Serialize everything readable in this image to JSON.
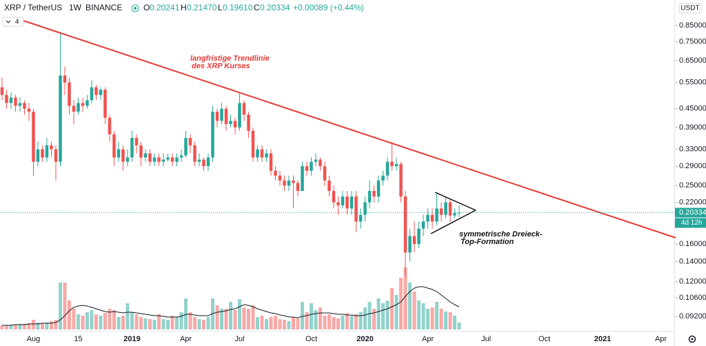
{
  "header": {
    "symbol": "XRP / TetherUS",
    "interval": "1W",
    "exchange": "BINANCE",
    "ohlc": [
      {
        "key": "O",
        "value": "0.20241"
      },
      {
        "key": "H",
        "value": "0.21470"
      },
      {
        "key": "L",
        "value": "0.19610"
      },
      {
        "key": "C",
        "value": "0.20334"
      }
    ],
    "change": "+0.00089 (+0.44%)",
    "indicator": "4"
  },
  "chart_data": {
    "type": "candlestick",
    "y_axis_unit": "USDT",
    "log_scale": true,
    "up_color": "#26a69a",
    "down_color": "#ef5350",
    "ylim": [
      0.0824,
      1.033
    ],
    "yticks": [
      {
        "value": 0.85,
        "label": "0.85000"
      },
      {
        "value": 0.75,
        "label": "0.75000"
      },
      {
        "value": 0.65,
        "label": "0.65000"
      },
      {
        "value": 0.55,
        "label": "0.55000"
      },
      {
        "value": 0.45,
        "label": "0.45000"
      },
      {
        "value": 0.39,
        "label": "0.39000"
      },
      {
        "value": 0.33,
        "label": "0.33000"
      },
      {
        "value": 0.29,
        "label": "0.29000"
      },
      {
        "value": 0.25,
        "label": "0.25000"
      },
      {
        "value": 0.22,
        "label": "0.22000"
      },
      {
        "value": 0.16,
        "label": "0.16000"
      },
      {
        "value": 0.14,
        "label": "0.14000"
      },
      {
        "value": 0.12,
        "label": "0.12000"
      },
      {
        "value": 0.106,
        "label": "0.10600"
      },
      {
        "value": 0.092,
        "label": "0.09200"
      }
    ],
    "price_tag": "0.20334",
    "countdown": "4d 12h",
    "annotations": [
      {
        "lines": [
          "langfristige Trendlinie",
          "des XRP Kurses"
        ],
        "color": "#e53935"
      },
      {
        "lines": [
          "symmetrische Dreieck-",
          "Top-Formation"
        ],
        "color": "#111111"
      }
    ],
    "categories": [
      null,
      null,
      null,
      null,
      null,
      null,
      null,
      "Aug",
      null,
      null,
      null,
      null,
      null,
      null,
      null,
      null,
      null,
      "15",
      null,
      null,
      null,
      null,
      null,
      null,
      null,
      null,
      null,
      null,
      null,
      "2019",
      null,
      null,
      null,
      null,
      null,
      null,
      null,
      null,
      null,
      null,
      null,
      "Apr",
      null,
      null,
      null,
      null,
      null,
      null,
      null,
      null,
      null,
      null,
      null,
      "Jul",
      null,
      null,
      null,
      null,
      null,
      null,
      null,
      null,
      null,
      null,
      null,
      null,
      null,
      null,
      null,
      "Oct",
      null,
      null,
      null,
      null,
      null,
      null,
      null,
      null,
      null,
      null,
      null,
      "2020",
      null,
      null,
      null,
      null,
      null,
      null,
      null,
      null,
      null,
      null,
      null,
      null,
      null,
      "Apr",
      null,
      null,
      null,
      null,
      null,
      null,
      null,
      null,
      null,
      null,
      null,
      null,
      "Jul",
      null,
      null,
      null,
      null,
      null,
      null,
      null,
      null,
      null,
      null,
      null,
      null,
      "Oct",
      null,
      null,
      null,
      null,
      null,
      null,
      null,
      null,
      null,
      null,
      null,
      null,
      "2021",
      null,
      null,
      null,
      null,
      null,
      null,
      null,
      null,
      null,
      null,
      null,
      null,
      "Apr",
      null,
      null
    ],
    "open": [
      0.53,
      0.5,
      0.47,
      0.49,
      0.46,
      0.47,
      0.45,
      0.44,
      0.3,
      0.33,
      0.31,
      0.34,
      0.33,
      0.3,
      0.58,
      0.55,
      0.46,
      0.44,
      0.47,
      0.46,
      0.48,
      0.53,
      0.5,
      0.52,
      0.42,
      0.37,
      0.31,
      0.33,
      0.3,
      0.31,
      0.36,
      0.34,
      0.31,
      0.32,
      0.3,
      0.31,
      0.3,
      0.305,
      0.31,
      0.3,
      0.31,
      0.315,
      0.36,
      0.34,
      0.3,
      0.305,
      0.29,
      0.31,
      0.44,
      0.41,
      0.45,
      0.4,
      0.41,
      0.39,
      0.47,
      0.43,
      0.38,
      0.31,
      0.33,
      0.31,
      0.32,
      0.28,
      0.27,
      0.26,
      0.25,
      0.26,
      0.255,
      0.24,
      0.29,
      0.28,
      0.3,
      0.305,
      0.29,
      0.26,
      0.24,
      0.22,
      0.215,
      0.23,
      0.21,
      0.23,
      0.19,
      0.2,
      0.22,
      0.24,
      0.23,
      0.26,
      0.27,
      0.3,
      0.29,
      0.295,
      0.23,
      0.15,
      0.17,
      0.16,
      0.18,
      0.19,
      0.2,
      0.19,
      0.21,
      0.2,
      0.22,
      0.199,
      0.20241,
      null,
      null,
      null,
      null,
      null,
      null,
      null,
      null,
      null,
      null,
      null,
      null,
      null,
      null,
      null,
      null,
      null,
      null,
      null,
      null,
      null,
      null,
      null,
      null,
      null,
      null,
      null,
      null,
      null,
      null,
      null,
      null,
      null,
      null,
      null,
      null,
      null,
      null,
      null,
      null,
      null,
      null,
      null,
      null,
      null,
      null,
      null
    ],
    "high": [
      0.57,
      0.52,
      0.51,
      0.5,
      0.49,
      0.48,
      0.47,
      0.45,
      0.35,
      0.34,
      0.36,
      0.35,
      0.34,
      0.81,
      0.62,
      0.57,
      0.48,
      0.49,
      0.49,
      0.5,
      0.56,
      0.54,
      0.53,
      0.53,
      0.43,
      0.38,
      0.35,
      0.34,
      0.33,
      0.38,
      0.37,
      0.35,
      0.33,
      0.33,
      0.32,
      0.32,
      0.32,
      0.32,
      0.32,
      0.32,
      0.33,
      0.38,
      0.37,
      0.35,
      0.32,
      0.31,
      0.32,
      0.46,
      0.45,
      0.47,
      0.46,
      0.43,
      0.42,
      0.51,
      0.48,
      0.44,
      0.39,
      0.34,
      0.34,
      0.33,
      0.33,
      0.29,
      0.28,
      0.27,
      0.27,
      0.27,
      0.26,
      0.3,
      0.3,
      0.31,
      0.32,
      0.31,
      0.3,
      0.27,
      0.25,
      0.23,
      0.24,
      0.24,
      0.24,
      0.24,
      0.21,
      0.23,
      0.26,
      0.25,
      0.27,
      0.28,
      0.31,
      0.35,
      0.31,
      0.3,
      0.24,
      0.18,
      0.19,
      0.19,
      0.2,
      0.21,
      0.21,
      0.235,
      0.22,
      0.23,
      0.225,
      0.21,
      0.2147,
      null,
      null,
      null,
      null,
      null,
      null,
      null,
      null,
      null,
      null,
      null,
      null,
      null,
      null,
      null,
      null,
      null,
      null,
      null,
      null,
      null,
      null,
      null,
      null,
      null,
      null,
      null,
      null,
      null,
      null,
      null,
      null,
      null,
      null,
      null,
      null,
      null,
      null,
      null,
      null,
      null,
      null,
      null,
      null,
      null,
      null,
      null
    ],
    "low": [
      0.48,
      0.45,
      0.45,
      0.44,
      0.44,
      0.43,
      0.41,
      0.27,
      0.29,
      0.3,
      0.3,
      0.31,
      0.26,
      0.29,
      0.5,
      0.43,
      0.4,
      0.43,
      0.44,
      0.45,
      0.47,
      0.48,
      0.48,
      0.4,
      0.35,
      0.29,
      0.3,
      0.28,
      0.29,
      0.3,
      0.32,
      0.29,
      0.3,
      0.29,
      0.29,
      0.29,
      0.29,
      0.3,
      0.29,
      0.29,
      0.3,
      0.31,
      0.32,
      0.29,
      0.29,
      0.28,
      0.28,
      0.3,
      0.39,
      0.4,
      0.38,
      0.39,
      0.37,
      0.38,
      0.41,
      0.36,
      0.3,
      0.3,
      0.3,
      0.3,
      0.27,
      0.26,
      0.25,
      0.24,
      0.24,
      0.21,
      0.23,
      0.24,
      0.27,
      0.27,
      0.29,
      0.28,
      0.25,
      0.23,
      0.21,
      0.2,
      0.21,
      0.2,
      0.2,
      0.175,
      0.18,
      0.19,
      0.21,
      0.22,
      0.22,
      0.25,
      0.26,
      0.28,
      0.28,
      0.22,
      0.125,
      0.14,
      0.15,
      0.155,
      0.17,
      0.18,
      0.18,
      0.185,
      0.19,
      0.195,
      0.19,
      0.195,
      0.1961,
      null,
      null,
      null,
      null,
      null,
      null,
      null,
      null,
      null,
      null,
      null,
      null,
      null,
      null,
      null,
      null,
      null,
      null,
      null,
      null,
      null,
      null,
      null,
      null,
      null,
      null,
      null,
      null,
      null,
      null,
      null,
      null,
      null,
      null,
      null,
      null,
      null,
      null,
      null,
      null,
      null,
      null,
      null,
      null,
      null,
      null,
      null
    ],
    "close": [
      0.5,
      0.47,
      0.49,
      0.46,
      0.47,
      0.45,
      0.44,
      0.3,
      0.33,
      0.31,
      0.34,
      0.33,
      0.3,
      0.58,
      0.55,
      0.46,
      0.44,
      0.47,
      0.46,
      0.48,
      0.53,
      0.5,
      0.52,
      0.42,
      0.37,
      0.31,
      0.33,
      0.3,
      0.31,
      0.36,
      0.34,
      0.31,
      0.32,
      0.3,
      0.31,
      0.3,
      0.305,
      0.31,
      0.3,
      0.31,
      0.315,
      0.36,
      0.34,
      0.3,
      0.305,
      0.29,
      0.31,
      0.44,
      0.41,
      0.45,
      0.4,
      0.41,
      0.39,
      0.47,
      0.43,
      0.38,
      0.31,
      0.33,
      0.31,
      0.32,
      0.28,
      0.27,
      0.26,
      0.25,
      0.26,
      0.255,
      0.24,
      0.29,
      0.28,
      0.3,
      0.305,
      0.29,
      0.26,
      0.24,
      0.22,
      0.215,
      0.23,
      0.21,
      0.23,
      0.19,
      0.2,
      0.22,
      0.24,
      0.23,
      0.26,
      0.27,
      0.3,
      0.29,
      0.295,
      0.23,
      0.15,
      0.17,
      0.16,
      0.18,
      0.19,
      0.2,
      0.19,
      0.21,
      0.2,
      0.22,
      0.199,
      0.20241,
      0.20334,
      null,
      null,
      null,
      null,
      null,
      null,
      null,
      null,
      null,
      null,
      null,
      null,
      null,
      null,
      null,
      null,
      null,
      null,
      null,
      null,
      null,
      null,
      null,
      null,
      null,
      null,
      null,
      null,
      null,
      null,
      null,
      null,
      null,
      null,
      null,
      null,
      null,
      null,
      null,
      null,
      null,
      null,
      null,
      null,
      null,
      null,
      null
    ],
    "volume": [
      6,
      6,
      7,
      7,
      8,
      8,
      9,
      14,
      10,
      9,
      10,
      12,
      14,
      68,
      68,
      42,
      30,
      22,
      20,
      25,
      28,
      22,
      20,
      24,
      30,
      28,
      18,
      20,
      38,
      25,
      22,
      18,
      16,
      15,
      14,
      22,
      15,
      14,
      20,
      18,
      25,
      45,
      25,
      18,
      15,
      14,
      18,
      45,
      35,
      30,
      30,
      40,
      28,
      44,
      32,
      30,
      35,
      18,
      20,
      15,
      18,
      20,
      15,
      14,
      12,
      18,
      16,
      40,
      25,
      38,
      28,
      32,
      20,
      22,
      18,
      16,
      20,
      24,
      20,
      22,
      25,
      32,
      40,
      30,
      45,
      38,
      42,
      60,
      50,
      75,
      90,
      68,
      55,
      42,
      38,
      30,
      32,
      40,
      30,
      26,
      25,
      20,
      10,
      null,
      null,
      null,
      null,
      null,
      null,
      null,
      null,
      null,
      null,
      null,
      null,
      null,
      null,
      null,
      null,
      null,
      null,
      null,
      null,
      null,
      null,
      null,
      null,
      null,
      null,
      null,
      null,
      null,
      null,
      null,
      null,
      null,
      null,
      null,
      null,
      null,
      null,
      null,
      null,
      null,
      null,
      null,
      null,
      null,
      null,
      null
    ],
    "volume_ma": [
      6,
      6,
      6,
      7,
      7,
      7,
      8,
      8,
      8,
      9,
      9,
      9,
      10,
      14,
      20,
      27,
      32,
      34,
      35,
      34,
      32,
      30,
      28,
      26,
      25,
      26,
      25,
      24,
      25,
      25,
      24,
      23,
      22,
      21,
      20,
      20,
      19,
      18,
      18,
      18,
      19,
      22,
      22,
      21,
      20,
      20,
      20,
      23,
      25,
      26,
      27,
      29,
      30,
      33,
      36,
      35,
      33,
      30,
      28,
      26,
      24,
      23,
      21,
      20,
      18,
      18,
      17,
      19,
      20,
      22,
      23,
      24,
      24,
      24,
      23,
      22,
      22,
      21,
      21,
      20,
      20,
      21,
      23,
      24,
      26,
      28,
      30,
      33,
      36,
      40,
      48,
      55,
      60,
      62,
      62,
      60,
      58,
      55,
      50,
      45,
      40,
      36,
      33,
      null,
      null,
      null,
      null,
      null,
      null,
      null,
      null,
      null,
      null,
      null,
      null,
      null,
      null,
      null,
      null,
      null,
      null,
      null,
      null,
      null,
      null,
      null,
      null,
      null,
      null,
      null,
      null,
      null,
      null,
      null,
      null,
      null,
      null,
      null,
      null,
      null,
      null,
      null,
      null,
      null,
      null,
      null,
      null,
      null,
      null,
      null
    ]
  }
}
